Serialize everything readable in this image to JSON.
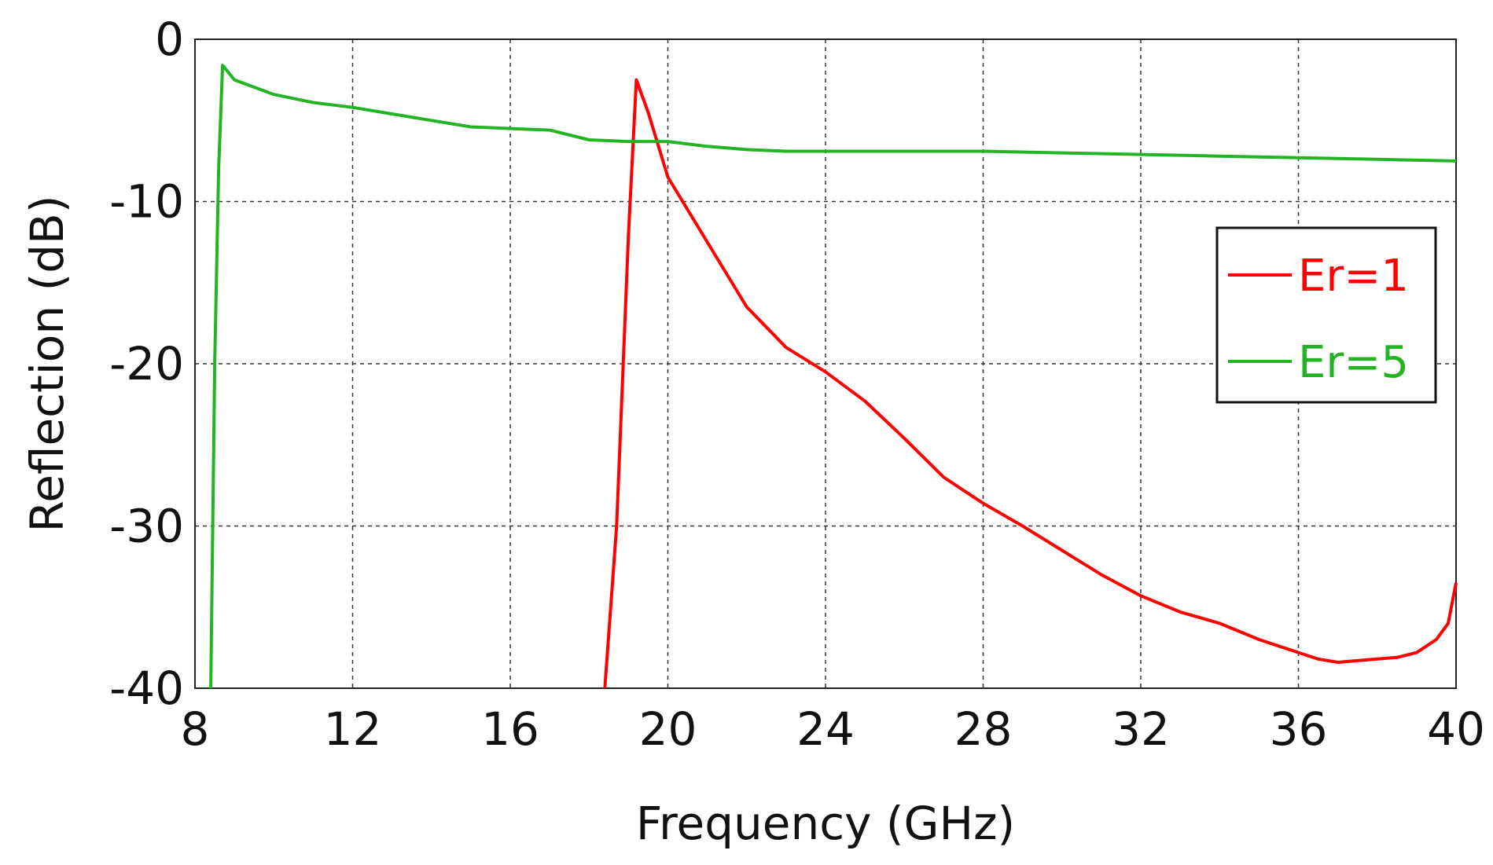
{
  "chart_data": {
    "type": "line",
    "title": "",
    "xlabel": "Frequency (GHz)",
    "ylabel": "Reflection (dB)",
    "xlim": [
      8,
      40
    ],
    "ylim": [
      -40,
      0
    ],
    "xticks": [
      8,
      12,
      16,
      20,
      24,
      28,
      32,
      36,
      40
    ],
    "yticks": [
      0,
      -10,
      -20,
      -30,
      -40
    ],
    "grid": true,
    "legend_position": "right",
    "series": [
      {
        "name": "Er=1",
        "color": "#ff0000",
        "x": [
          18.4,
          18.7,
          19.0,
          19.2,
          19.5,
          20.0,
          21.0,
          22.0,
          23.0,
          24.0,
          25.0,
          26.0,
          27.0,
          28.0,
          29.0,
          30.0,
          31.0,
          32.0,
          32.5,
          33.0,
          34.0,
          35.0,
          36.0,
          36.5,
          37.0,
          37.5,
          38.0,
          38.5,
          39.0,
          39.5,
          39.8,
          40.0
        ],
        "y": [
          -40,
          -30,
          -12,
          -2.5,
          -4.5,
          -8.5,
          -12.5,
          -16.5,
          -19.0,
          -20.5,
          -22.3,
          -24.6,
          -27.0,
          -28.6,
          -30.0,
          -31.5,
          -33.0,
          -34.3,
          -34.8,
          -35.3,
          -36.0,
          -37.0,
          -37.8,
          -38.2,
          -38.4,
          -38.3,
          -38.2,
          -38.1,
          -37.8,
          -37.0,
          -36.0,
          -33.5
        ]
      },
      {
        "name": "Er=5",
        "color": "#22b422",
        "x": [
          8.4,
          8.5,
          8.6,
          8.7,
          9.0,
          10.0,
          11.0,
          12.0,
          13.0,
          14.0,
          15.0,
          16.0,
          17.0,
          18.0,
          19.0,
          20.0,
          21.0,
          22.0,
          23.0,
          24.0,
          26.0,
          28.0,
          30.0,
          32.0,
          34.0,
          36.0,
          38.0,
          40.0
        ],
        "y": [
          -40,
          -20,
          -8,
          -1.6,
          -2.5,
          -3.4,
          -3.9,
          -4.2,
          -4.6,
          -5.0,
          -5.4,
          -5.5,
          -5.6,
          -6.2,
          -6.3,
          -6.3,
          -6.6,
          -6.8,
          -6.9,
          -6.9,
          -6.9,
          -6.9,
          -7.0,
          -7.1,
          -7.2,
          -7.3,
          -7.4,
          -7.5
        ]
      }
    ]
  }
}
